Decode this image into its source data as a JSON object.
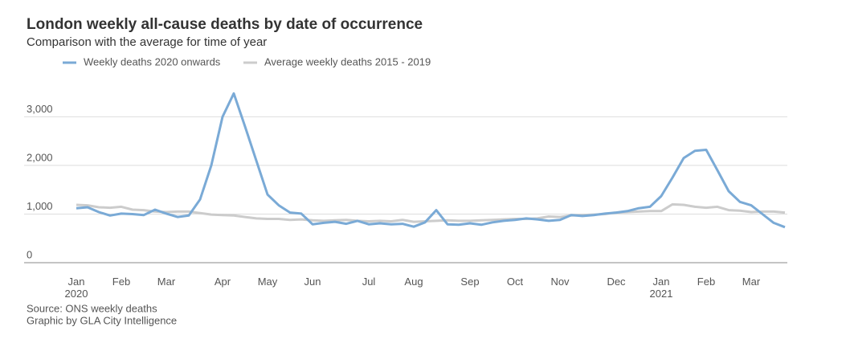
{
  "chart_data": {
    "type": "line",
    "title": "London weekly all-cause deaths by date of occurrence",
    "subtitle": "Comparison with the average for time of year",
    "notes": [
      "Source: ONS weekly deaths",
      "Graphic by GLA City Intelligence"
    ],
    "categories": [
      "Jan\n2020",
      null,
      null,
      null,
      "Feb",
      null,
      null,
      null,
      "Mar",
      null,
      null,
      null,
      null,
      "Apr",
      null,
      null,
      null,
      "May",
      null,
      null,
      null,
      "Jun",
      null,
      null,
      null,
      null,
      "Jul",
      null,
      null,
      null,
      "Aug",
      null,
      null,
      null,
      null,
      "Sep",
      null,
      null,
      null,
      "Oct",
      null,
      null,
      null,
      "Nov",
      null,
      null,
      null,
      null,
      "Dec",
      null,
      null,
      null,
      "Jan\n2021",
      null,
      null,
      null,
      "Feb",
      null,
      null,
      null,
      "Mar",
      null,
      null,
      null
    ],
    "series": [
      {
        "name": "Weekly deaths 2020 onwards",
        "color": "#7aaad6",
        "values": [
          1120,
          1140,
          1040,
          970,
          1010,
          1000,
          980,
          1090,
          1010,
          940,
          970,
          1300,
          2000,
          3000,
          3480,
          2800,
          2100,
          1400,
          1180,
          1030,
          1010,
          790,
          820,
          840,
          800,
          860,
          790,
          810,
          790,
          800,
          740,
          830,
          1080,
          790,
          780,
          810,
          780,
          830,
          860,
          880,
          910,
          890,
          860,
          880,
          980,
          960,
          980,
          1010,
          1030,
          1060,
          1120,
          1150,
          1370,
          1750,
          2150,
          2300,
          2320,
          1900,
          1470,
          1250,
          1180,
          1000,
          820,
          730
        ]
      },
      {
        "name": "Average weekly deaths 2015 - 2019",
        "color": "#cccccc",
        "values": [
          1190,
          1180,
          1140,
          1130,
          1150,
          1090,
          1080,
          1050,
          1040,
          1050,
          1050,
          1020,
          990,
          980,
          970,
          940,
          910,
          900,
          900,
          880,
          890,
          870,
          860,
          870,
          880,
          860,
          850,
          860,
          850,
          880,
          840,
          850,
          860,
          870,
          860,
          860,
          870,
          880,
          890,
          900,
          900,
          910,
          950,
          940,
          970,
          980,
          990,
          1000,
          1030,
          1040,
          1050,
          1060,
          1060,
          1200,
          1190,
          1150,
          1130,
          1150,
          1080,
          1070,
          1040,
          1050,
          1050,
          1030
        ]
      }
    ],
    "ylim": [
      0,
      3700
    ],
    "yticks": [
      0,
      {
        "value": 1000,
        "label": "1,000"
      },
      {
        "value": 2000,
        "label": "2,000"
      },
      {
        "value": 3000,
        "label": "3,000"
      }
    ],
    "grid": true,
    "legend": "top"
  }
}
